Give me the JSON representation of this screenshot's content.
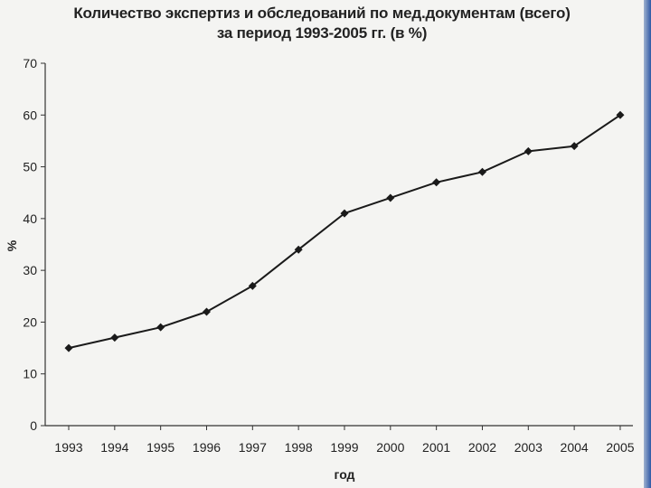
{
  "chart_data": {
    "type": "line",
    "title": "Количество экспертиз и обследований по мед.документам (всего)",
    "subtitle": "за период 1993-2005 гг. (в %)",
    "xlabel": "год",
    "ylabel": "%",
    "ylim": [
      0,
      70
    ],
    "yticks": [
      0,
      10,
      20,
      30,
      40,
      50,
      60,
      70
    ],
    "categories": [
      "1993",
      "1994",
      "1995",
      "1996",
      "1997",
      "1998",
      "1999",
      "2000",
      "2001",
      "2002",
      "2003",
      "2004",
      "2005"
    ],
    "values": [
      15,
      17,
      19,
      22,
      27,
      34,
      41,
      44,
      47,
      49,
      53,
      54,
      60
    ],
    "grid": false,
    "legend": "none",
    "marker": "diamond",
    "colors": {
      "line": "#1a1a1a",
      "axis": "#333333",
      "text": "#222222"
    }
  }
}
